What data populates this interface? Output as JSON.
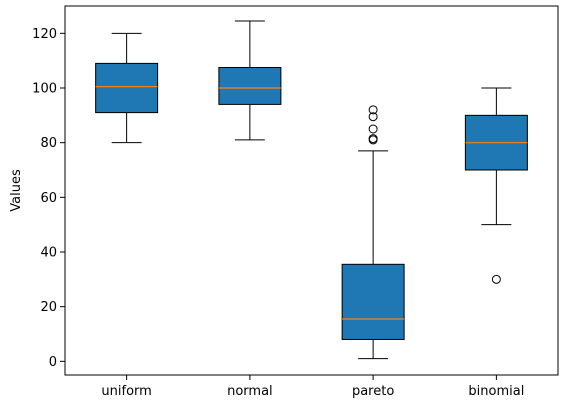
{
  "chart_data": {
    "type": "box",
    "title": "",
    "xlabel": "",
    "ylabel": "Values",
    "ylim": [
      -5,
      130
    ],
    "yticks": [
      0,
      20,
      40,
      60,
      80,
      100,
      120
    ],
    "categories": [
      "uniform",
      "normal",
      "pareto",
      "binomial"
    ],
    "boxes": [
      {
        "category": "uniform",
        "whisker_low": 80,
        "q1": 91,
        "median": 100.5,
        "q3": 109,
        "whisker_high": 120,
        "outliers": []
      },
      {
        "category": "normal",
        "whisker_low": 81,
        "q1": 94,
        "median": 100,
        "q3": 107.5,
        "whisker_high": 124.5,
        "outliers": []
      },
      {
        "category": "pareto",
        "whisker_low": 1,
        "q1": 8,
        "median": 15.5,
        "q3": 35.5,
        "whisker_high": 77,
        "outliers": [
          81,
          81.5,
          85,
          89.5,
          92
        ]
      },
      {
        "category": "binomial",
        "whisker_low": 50,
        "q1": 70,
        "median": 80,
        "q3": 90,
        "whisker_high": 100,
        "outliers": [
          30
        ]
      }
    ],
    "colors": {
      "box_fill": "#1f77b4",
      "median": "#ff7f0e",
      "edge": "#000000"
    },
    "grid": false,
    "legend": "none"
  }
}
